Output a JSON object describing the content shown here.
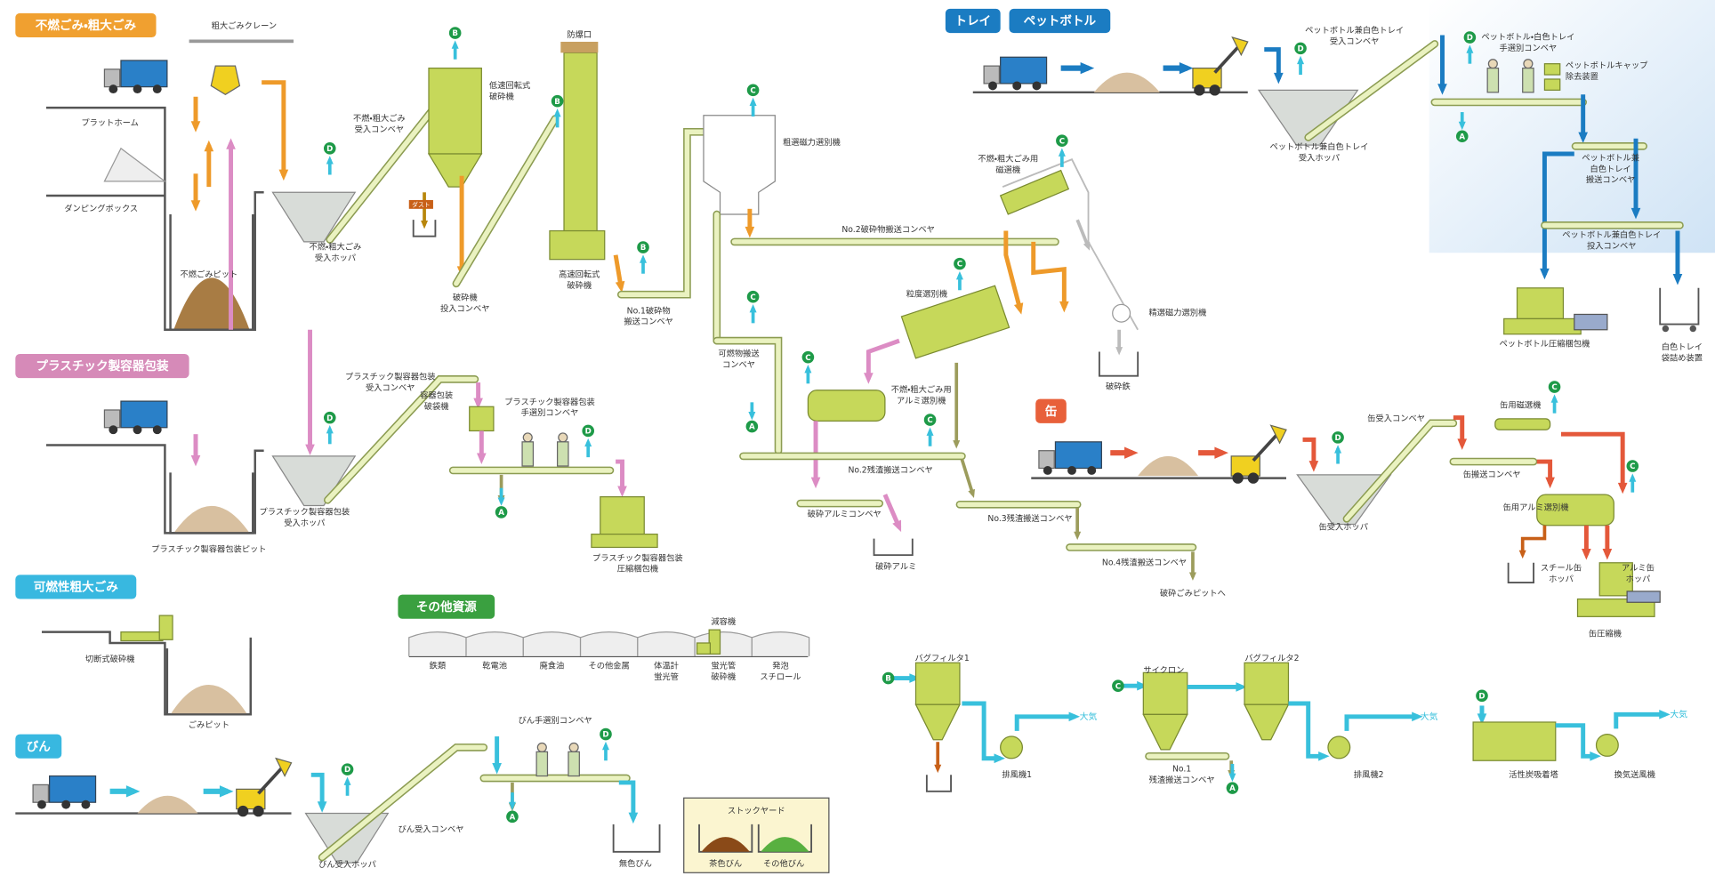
{
  "sections": {
    "noncombustible": "不燃ごみ・粗大ごみ",
    "plastic": "プラスチック製容器包装",
    "combustible": "可燃性粗大ごみ",
    "bottle": "びん",
    "other": "その他資源",
    "tray": "トレイ",
    "pet": "ペットボトル",
    "can": "缶"
  },
  "markers": [
    "A",
    "B",
    "C",
    "D"
  ],
  "dust": "ダスト",
  "air": "大気",
  "labels": {
    "crane": [
      "粗大ごみクレーン"
    ],
    "platform": [
      "プラットホーム"
    ],
    "dumping": [
      "ダンピングボックス"
    ],
    "pit_noncomb": [
      "不燃ごみピット"
    ],
    "hopper_noncomb": [
      "不燃・粗大ごみ",
      "受入ホッパ"
    ],
    "conv_noncomb": [
      "不燃・粗大ごみ",
      "受入コンベヤ"
    ],
    "crusher_low": [
      "低速回転式",
      "破砕機"
    ],
    "conv_crusher": [
      "破砕機",
      "投入コンベヤ"
    ],
    "vent": [
      "防爆口"
    ],
    "crusher_high": [
      "高速回転式",
      "破砕機"
    ],
    "conv_no1": [
      "No.1破砕物",
      "搬送コンベヤ"
    ],
    "mag_rough": [
      "粗選磁力選別機"
    ],
    "conv_no2": [
      "No.2破砕物搬送コンベヤ"
    ],
    "conv_comb": [
      "可燃物搬送",
      "コンベヤ"
    ],
    "sieve": [
      "粒度選別機"
    ],
    "alum_noncomb": [
      "不燃・粗大ごみ用",
      "アルミ選別機"
    ],
    "conv_res2": [
      "No.2残渣搬送コンベヤ"
    ],
    "conv_alum": [
      "破砕アルミコンベヤ"
    ],
    "alum": [
      "破砕アルミ"
    ],
    "conv_res3": [
      "No.3残渣搬送コンベヤ"
    ],
    "conv_res4": [
      "No.4残渣搬送コンベヤ"
    ],
    "to_pit": [
      "破砕ごみピットへ"
    ],
    "mag_noncomb": [
      "不燃・粗大ごみ用",
      "磁選機"
    ],
    "mag_fine": [
      "精選磁力選別機"
    ],
    "iron": [
      "破砕鉄"
    ],
    "conv_plastic": [
      "プラスチック製容器包装",
      "受入コンベヤ"
    ],
    "bag_breaker": [
      "容器包装",
      "破袋機"
    ],
    "sort_plastic": [
      "プラスチック製容器包装",
      "手選別コンベヤ"
    ],
    "hopper_plastic": [
      "プラスチック製容器包装",
      "受入ホッパ"
    ],
    "pit_plastic": [
      "プラスチック製容器包装ピット"
    ],
    "baler_plastic": [
      "プラスチック製容器包装",
      "圧縮梱包機"
    ],
    "cutter": [
      "切断式破砕機"
    ],
    "pit_comb": [
      "ごみピット"
    ],
    "reducer": [
      "減容機"
    ],
    "conv_bottle_sort": [
      "びん手選別コンベヤ"
    ],
    "conv_bottle": [
      "びん受入コンベヤ"
    ],
    "hopper_bottle": [
      "びん受入ホッパ"
    ],
    "clear": [
      "無色びん"
    ],
    "stockyard": [
      "ストックヤード"
    ],
    "brown": [
      "茶色びん"
    ],
    "other_bottle": [
      "その他びん"
    ],
    "conv_pet_in": [
      "ペットボトル兼白色トレイ",
      "受入コンベヤ"
    ],
    "hopper_pet": [
      "ペットボトル兼白色トレイ",
      "受入ホッパ"
    ],
    "sort_pet": [
      "ペットボトル・白色トレイ",
      "手選別コンベヤ"
    ],
    "cap": [
      "ペットボトルキャップ",
      "除去装置"
    ],
    "conv_pet": [
      "ペットボトル兼",
      "白色トレイ",
      "搬送コンベヤ"
    ],
    "conv_pet_feed": [
      "ペットボトル兼白色トレイ",
      "投入コンベヤ"
    ],
    "baler_pet": [
      "ペットボトル圧縮梱包機"
    ],
    "tray_bag": [
      "白色トレイ",
      "袋詰め装置"
    ],
    "conv_can_in": [
      "缶受入コンベヤ"
    ],
    "mag_can": [
      "缶用磁選機"
    ],
    "conv_can": [
      "缶搬送コンベヤ"
    ],
    "alum_can": [
      "缶用アルミ選別機"
    ],
    "hopper_can": [
      "缶受入ホッパ"
    ],
    "steel_hopper": [
      "スチール缶",
      "ホッパ"
    ],
    "alum_hopper": [
      "アルミ缶",
      "ホッパ"
    ],
    "can_press": [
      "缶圧縮機"
    ],
    "bag1": [
      "バグフィルタ1"
    ],
    "fan1": [
      "排風機1"
    ],
    "cyclone": [
      "サイクロン"
    ],
    "bag2": [
      "バグフィルタ2"
    ],
    "conv_res1": [
      "No.1",
      "残渣搬送コンベヤ"
    ],
    "fan2": [
      "排風機2"
    ],
    "carbon": [
      "活性炭吸着塔"
    ],
    "vent_fan": [
      "換気送風機"
    ]
  },
  "other_resources": [
    [
      "鉄類"
    ],
    [
      "乾電池"
    ],
    [
      "廃食油"
    ],
    [
      "その他金属"
    ],
    [
      "体温計",
      "蛍光管"
    ],
    [
      "蛍光管",
      "破砕機"
    ],
    [
      "発泡",
      "スチロール"
    ]
  ]
}
